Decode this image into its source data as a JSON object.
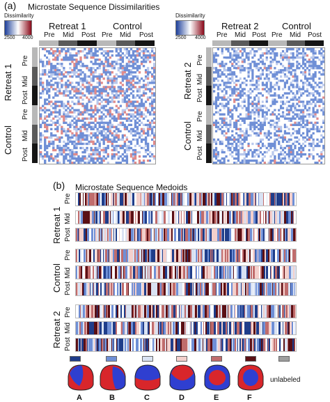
{
  "panel_a": {
    "label": "(a)",
    "title": "Microstate Sequence Dissimilarities",
    "colorbar": {
      "label": "Dissimilarity",
      "left": {
        "min": "2500",
        "max": "4000"
      },
      "right": {
        "min": "2500",
        "max": "4000"
      }
    },
    "left_matrix": {
      "top_groups": [
        "Retreat 1",
        "Control"
      ],
      "side_groups": [
        "Retreat 1",
        "Control"
      ],
      "conds": [
        "Pre",
        "Mid",
        "Post"
      ]
    },
    "right_matrix": {
      "top_groups": [
        "Retreat 2",
        "Control"
      ],
      "side_groups": [
        "Retreat 2",
        "Control"
      ],
      "conds": [
        "Pre",
        "Mid",
        "Post"
      ]
    }
  },
  "panel_b": {
    "label": "(b)",
    "title": "Microstate Sequence Medoids",
    "groups": [
      {
        "name": "Retreat 1",
        "conds": [
          "Pre",
          "Mid",
          "Post"
        ]
      },
      {
        "name": "Control",
        "conds": [
          "Pre",
          "Mid",
          "Post"
        ]
      },
      {
        "name": "Retreat 2",
        "conds": [
          "Pre",
          "Mid",
          "Post"
        ]
      }
    ],
    "legend": {
      "swatch_colors": [
        "#1f3d8a",
        "#6f8fd6",
        "#d9e2f3",
        "#f4d0cc",
        "#c06c6c",
        "#5a0f14",
        "#9e9e9e"
      ],
      "maps": [
        "A",
        "B",
        "C",
        "D",
        "E",
        "F"
      ],
      "unlabeled": "unlabeled"
    }
  }
}
